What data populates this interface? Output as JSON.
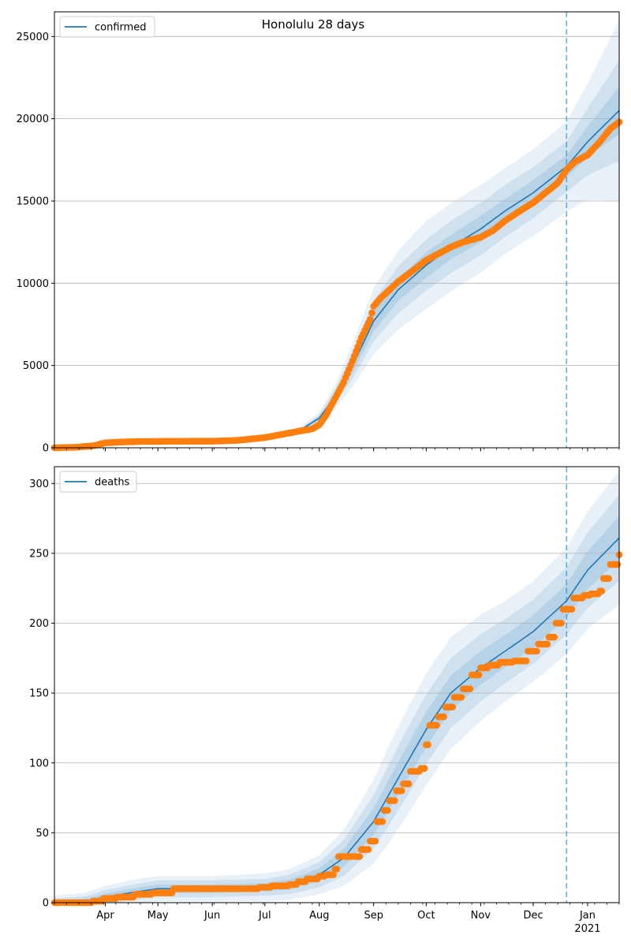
{
  "figure": {
    "title": "Honolulu 28 days"
  },
  "colors": {
    "model": "#1f77b4",
    "observed": "#ff7f0e",
    "band": "#1f77b4",
    "grid": "#b0b0b0",
    "forecast_line": "#1f77b4"
  },
  "x_axis": {
    "range": [
      "2020-03-03",
      "2021-01-19"
    ],
    "month_ticks": [
      {
        "date": "2020-04-01",
        "label": "Apr"
      },
      {
        "date": "2020-05-01",
        "label": "May"
      },
      {
        "date": "2020-06-01",
        "label": "Jun"
      },
      {
        "date": "2020-07-01",
        "label": "Jul"
      },
      {
        "date": "2020-08-01",
        "label": "Aug"
      },
      {
        "date": "2020-09-01",
        "label": "Sep"
      },
      {
        "date": "2020-10-01",
        "label": "Oct"
      },
      {
        "date": "2020-11-01",
        "label": "Nov"
      },
      {
        "date": "2020-12-01",
        "label": "Dec"
      },
      {
        "date": "2021-01-01",
        "label": "Jan"
      }
    ],
    "year_label": {
      "date": "2021-01-01",
      "label": "2021"
    },
    "forecast_start": "2020-12-20"
  },
  "chart_data": [
    {
      "type": "line",
      "legend": "confirmed",
      "legend_position": "upper-left",
      "grid": "horizontal",
      "ylim": [
        0,
        26500
      ],
      "yticks": [
        0,
        5000,
        10000,
        15000,
        20000,
        25000
      ],
      "model": {
        "x": [
          "2020-03-03",
          "2020-04-01",
          "2020-05-01",
          "2020-06-01",
          "2020-07-01",
          "2020-07-20",
          "2020-08-01",
          "2020-08-10",
          "2020-08-20",
          "2020-09-01",
          "2020-09-15",
          "2020-10-01",
          "2020-10-15",
          "2020-11-01",
          "2020-11-15",
          "2020-12-01",
          "2020-12-20",
          "2021-01-01",
          "2021-01-19"
        ],
        "y": [
          0,
          250,
          380,
          400,
          700,
          1000,
          1800,
          3100,
          5000,
          7700,
          9600,
          11100,
          12200,
          13300,
          14400,
          15500,
          17100,
          18600,
          20500
        ],
        "band_ratios_outer": [
          0.12,
          0.12,
          0.12,
          0.12,
          0.13,
          0.16,
          0.2,
          0.24,
          0.26,
          0.26,
          0.25,
          0.24,
          0.22,
          0.2,
          0.18,
          0.17,
          0.16,
          0.19,
          0.27
        ],
        "band_ratios_mid": [
          0.07,
          0.07,
          0.07,
          0.07,
          0.08,
          0.1,
          0.12,
          0.15,
          0.16,
          0.16,
          0.15,
          0.14,
          0.13,
          0.12,
          0.11,
          0.1,
          0.09,
          0.11,
          0.15
        ],
        "band_ratios_inner": [
          0.03,
          0.03,
          0.03,
          0.03,
          0.04,
          0.05,
          0.06,
          0.07,
          0.08,
          0.08,
          0.07,
          0.07,
          0.06,
          0.06,
          0.05,
          0.05,
          0.04,
          0.05,
          0.07
        ]
      },
      "observed": {
        "x": [
          "2020-03-03",
          "2020-03-15",
          "2020-03-25",
          "2020-04-01",
          "2020-04-10",
          "2020-04-20",
          "2020-05-01",
          "2020-05-15",
          "2020-06-01",
          "2020-06-15",
          "2020-07-01",
          "2020-07-10",
          "2020-07-20",
          "2020-07-28",
          "2020-08-01",
          "2020-08-05",
          "2020-08-10",
          "2020-08-15",
          "2020-08-20",
          "2020-08-25",
          "2020-08-30",
          "2020-09-01",
          "2020-09-05",
          "2020-09-10",
          "2020-09-15",
          "2020-09-20",
          "2020-09-25",
          "2020-10-01",
          "2020-10-08",
          "2020-10-15",
          "2020-10-22",
          "2020-11-01",
          "2020-11-08",
          "2020-11-15",
          "2020-11-22",
          "2020-12-01",
          "2020-12-08",
          "2020-12-15",
          "2020-12-20",
          "2020-12-25",
          "2021-01-01",
          "2021-01-08",
          "2021-01-14",
          "2021-01-19"
        ],
        "y": [
          0,
          30,
          120,
          300,
          350,
          380,
          390,
          395,
          400,
          450,
          620,
          800,
          1000,
          1150,
          1400,
          2000,
          3000,
          4000,
          5300,
          6700,
          7800,
          8600,
          9100,
          9600,
          10100,
          10500,
          10900,
          11400,
          11800,
          12200,
          12500,
          12800,
          13200,
          13800,
          14300,
          14900,
          15500,
          16100,
          16900,
          17400,
          17800,
          18600,
          19400,
          19800
        ]
      }
    },
    {
      "type": "line",
      "legend": "deaths",
      "legend_position": "upper-left",
      "grid": "horizontal",
      "ylim": [
        0,
        312
      ],
      "yticks": [
        0,
        50,
        100,
        150,
        200,
        250,
        300
      ],
      "model": {
        "x": [
          "2020-03-03",
          "2020-03-20",
          "2020-04-01",
          "2020-04-15",
          "2020-05-01",
          "2020-06-01",
          "2020-07-01",
          "2020-07-15",
          "2020-08-01",
          "2020-08-15",
          "2020-09-01",
          "2020-09-10",
          "2020-09-20",
          "2020-10-01",
          "2020-10-15",
          "2020-11-01",
          "2020-11-15",
          "2020-12-01",
          "2020-12-20",
          "2021-01-01",
          "2021-01-19"
        ],
        "y": [
          0,
          1,
          4,
          7,
          10,
          10,
          11,
          13,
          20,
          32,
          58,
          78,
          100,
          124,
          150,
          168,
          180,
          194,
          216,
          238,
          261
        ],
        "band_abs_outer": [
          5,
          6,
          8,
          9,
          9,
          9,
          10,
          11,
          14,
          20,
          30,
          35,
          38,
          40,
          40,
          38,
          36,
          36,
          38,
          42,
          48
        ],
        "band_abs_mid": [
          3,
          3.5,
          5,
          5.5,
          6,
          6,
          6,
          7,
          9,
          13,
          19,
          22,
          24,
          25,
          25,
          24,
          23,
          23,
          24,
          27,
          31
        ],
        "band_abs_inner": [
          1.5,
          1.8,
          2.5,
          2.8,
          3,
          3,
          3,
          3.5,
          4.5,
          6.5,
          9.5,
          11,
          12,
          12.5,
          12.5,
          12,
          11.5,
          11.5,
          12,
          13.5,
          15.5
        ]
      },
      "observed": {
        "x": [
          "2020-03-03",
          "2020-03-25",
          "2020-03-31",
          "2020-04-08",
          "2020-04-18",
          "2020-04-25",
          "2020-04-28",
          "2020-05-10",
          "2020-06-01",
          "2020-06-20",
          "2020-06-28",
          "2020-07-05",
          "2020-07-15",
          "2020-07-20",
          "2020-07-25",
          "2020-08-01",
          "2020-08-05",
          "2020-08-10",
          "2020-08-12",
          "2020-08-20",
          "2020-08-25",
          "2020-08-30",
          "2020-09-03",
          "2020-09-07",
          "2020-09-10",
          "2020-09-14",
          "2020-09-18",
          "2020-09-22",
          "2020-09-28",
          "2020-10-01",
          "2020-10-03",
          "2020-10-08",
          "2020-10-12",
          "2020-10-17",
          "2020-10-22",
          "2020-10-27",
          "2020-11-01",
          "2020-11-06",
          "2020-11-12",
          "2020-11-20",
          "2020-11-24",
          "2020-11-28",
          "2020-12-04",
          "2020-12-10",
          "2020-12-14",
          "2020-12-18",
          "2020-12-24",
          "2020-12-30",
          "2021-01-03",
          "2021-01-08",
          "2021-01-10",
          "2021-01-14",
          "2021-01-19"
        ],
        "y": [
          0,
          1,
          3,
          4,
          6,
          6,
          7,
          10,
          10,
          10,
          11,
          12,
          13,
          15,
          17,
          19,
          20,
          24,
          33,
          33,
          38,
          44,
          58,
          66,
          73,
          80,
          85,
          94,
          96,
          113,
          127,
          133,
          140,
          147,
          153,
          163,
          168,
          170,
          172,
          173,
          173,
          180,
          185,
          190,
          200,
          210,
          218,
          220,
          221,
          223,
          232,
          242,
          249
        ]
      }
    }
  ]
}
